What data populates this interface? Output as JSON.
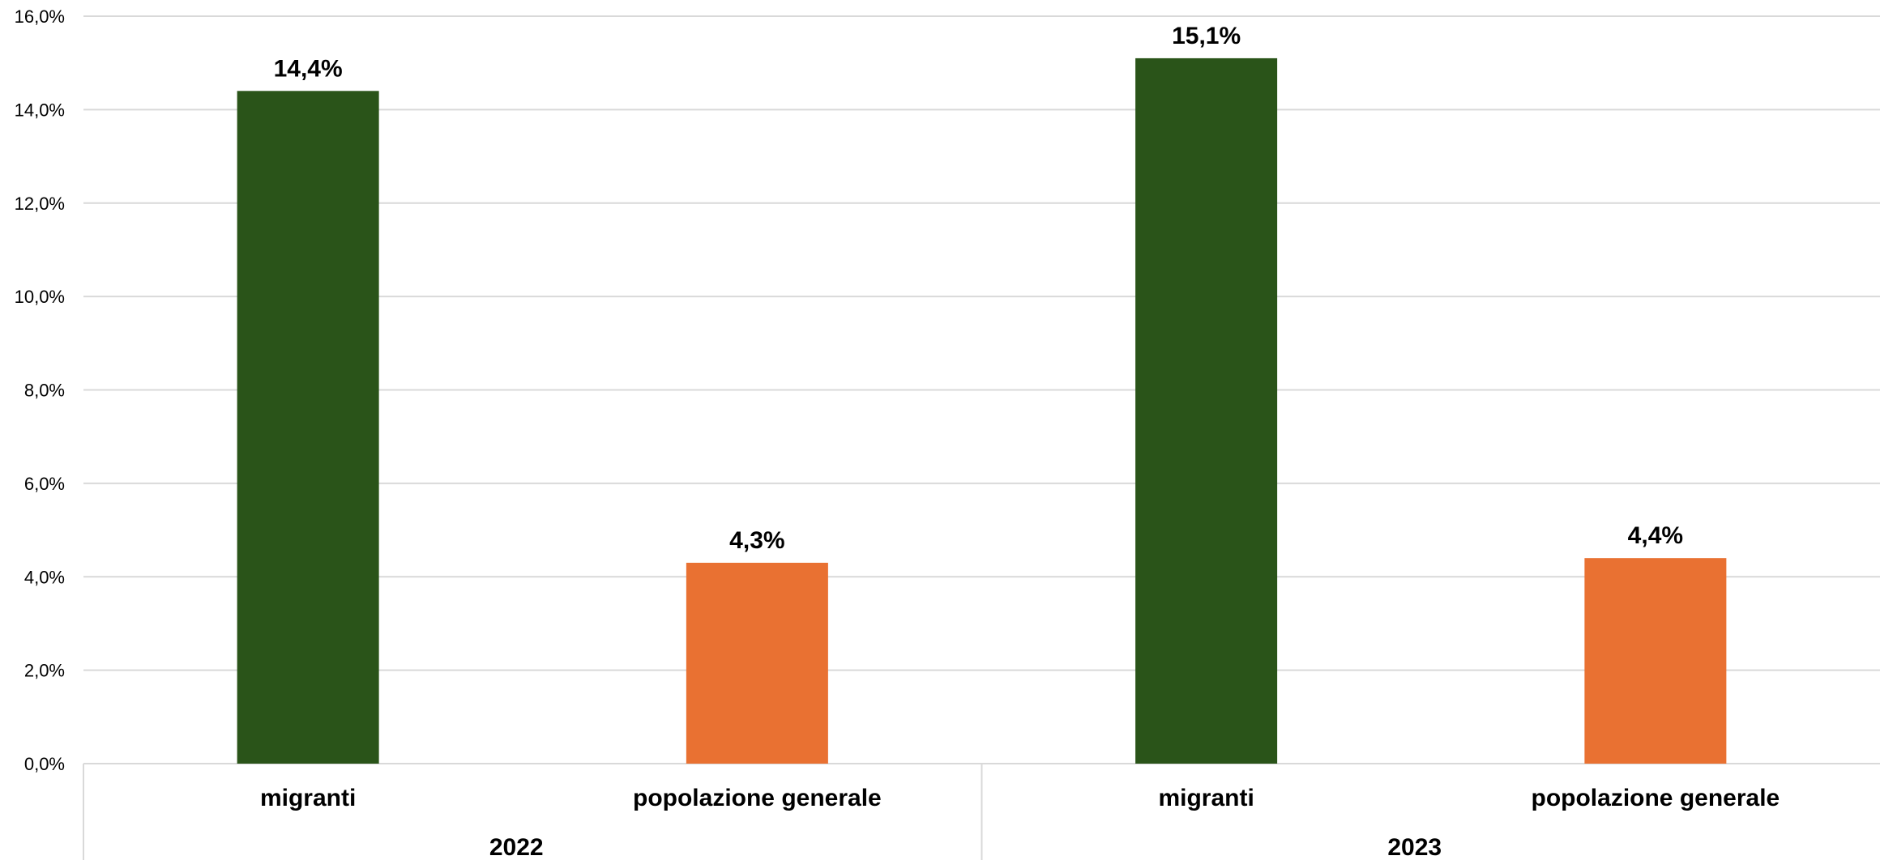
{
  "chart_data": {
    "type": "bar",
    "title": "",
    "xlabel": "",
    "ylabel": "",
    "ylim": [
      0,
      16
    ],
    "y_ticks": [
      "0,0%",
      "2,0%",
      "4,0%",
      "6,0%",
      "8,0%",
      "10,0%",
      "12,0%",
      "14,0%",
      "16,0%"
    ],
    "grid": true,
    "legend": "none",
    "groups": [
      {
        "label": "2022",
        "bars": [
          {
            "category": "migranti",
            "value": 14.4,
            "label": "14,4%",
            "color": "#2a5419"
          },
          {
            "category": "popolazione generale",
            "value": 4.3,
            "label": "4,3%",
            "color": "#e97132"
          }
        ]
      },
      {
        "label": "2023",
        "bars": [
          {
            "category": "migranti",
            "value": 15.1,
            "label": "15,1%",
            "color": "#2a5419"
          },
          {
            "category": "popolazione generale",
            "value": 4.4,
            "label": "4,4%",
            "color": "#e97132"
          }
        ]
      }
    ]
  }
}
